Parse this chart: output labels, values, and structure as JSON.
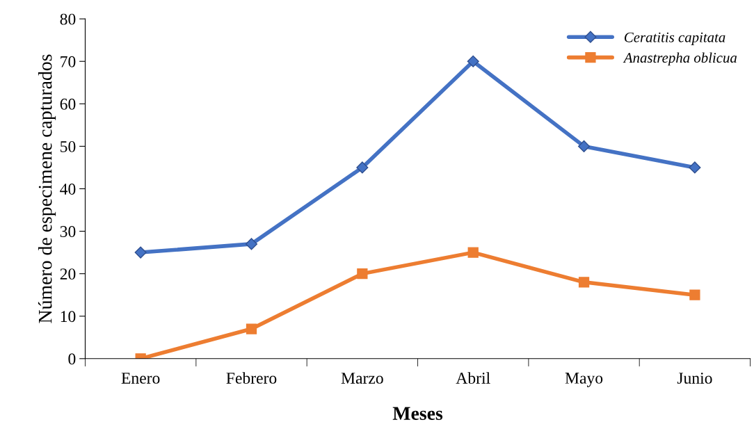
{
  "chart_data": {
    "type": "line",
    "xlabel": "Meses",
    "ylabel": "Número de especimene capturados",
    "categories": [
      "Enero",
      "Febrero",
      "Marzo",
      "Abril",
      "Mayo",
      "Junio"
    ],
    "series": [
      {
        "name": "Ceratitis capitata",
        "color": "#4472c4",
        "marker": "diamond",
        "values": [
          25,
          27,
          45,
          70,
          50,
          45
        ]
      },
      {
        "name": "Anastrepha oblicua",
        "color": "#ed7d31",
        "marker": "square",
        "values": [
          0,
          7,
          20,
          25,
          18,
          15
        ]
      }
    ],
    "ylim": [
      0,
      80
    ],
    "yticks": [
      0,
      10,
      20,
      30,
      40,
      50,
      60,
      70,
      80
    ],
    "grid": false,
    "legend": "top right",
    "line_style": "solid"
  }
}
